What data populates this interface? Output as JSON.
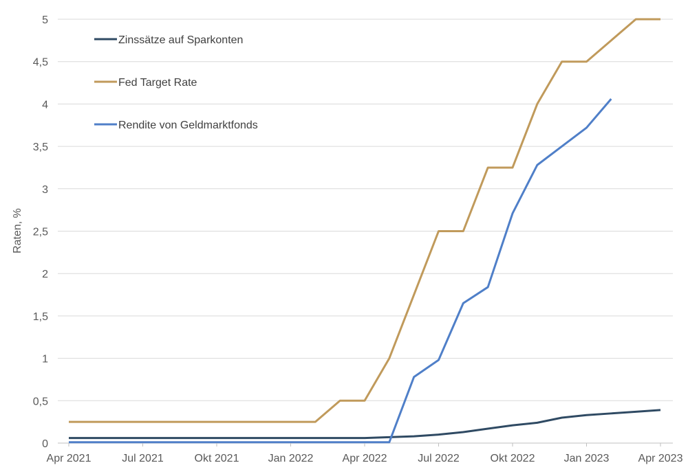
{
  "chart_data": {
    "type": "line",
    "ylabel": "Raten, %",
    "xlabel": "",
    "ylim": [
      0,
      5
    ],
    "y_ticks": [
      0,
      0.5,
      1,
      1.5,
      2,
      2.5,
      3,
      3.5,
      4,
      4.5,
      5
    ],
    "y_tick_labels": [
      "0",
      "0,5",
      "1",
      "1,5",
      "2",
      "2,5",
      "3",
      "3,5",
      "4",
      "4,5",
      "5"
    ],
    "x_range": [
      "2021-04",
      "2023-04"
    ],
    "x_ticks": [
      "2021-04",
      "2021-07",
      "2021-10",
      "2022-01",
      "2022-04",
      "2022-07",
      "2022-10",
      "2023-01",
      "2023-04"
    ],
    "x_tick_labels": [
      "Apr 2021",
      "Jul 2021",
      "Okt 2021",
      "Jan 2022",
      "Apr 2022",
      "Jul 2022",
      "Okt 2022",
      "Jan 2023",
      "Apr 2023"
    ],
    "grid": "horizontal",
    "legend_position": "top-left",
    "series": [
      {
        "name": "Zinssätze auf Sparkonten",
        "color": "#2f4a63",
        "points": [
          [
            "2021-04",
            0.06
          ],
          [
            "2021-05",
            0.06
          ],
          [
            "2021-06",
            0.06
          ],
          [
            "2021-07",
            0.06
          ],
          [
            "2021-08",
            0.06
          ],
          [
            "2021-09",
            0.06
          ],
          [
            "2021-10",
            0.06
          ],
          [
            "2021-11",
            0.06
          ],
          [
            "2021-12",
            0.06
          ],
          [
            "2022-01",
            0.06
          ],
          [
            "2022-02",
            0.06
          ],
          [
            "2022-03",
            0.06
          ],
          [
            "2022-04",
            0.06
          ],
          [
            "2022-05",
            0.07
          ],
          [
            "2022-06",
            0.08
          ],
          [
            "2022-07",
            0.1
          ],
          [
            "2022-08",
            0.13
          ],
          [
            "2022-09",
            0.17
          ],
          [
            "2022-10",
            0.21
          ],
          [
            "2022-11",
            0.24
          ],
          [
            "2022-12",
            0.3
          ],
          [
            "2023-01",
            0.33
          ],
          [
            "2023-02",
            0.35
          ],
          [
            "2023-03",
            0.37
          ],
          [
            "2023-04",
            0.39
          ]
        ]
      },
      {
        "name": "Fed Target Rate",
        "color": "#c09a5b",
        "points": [
          [
            "2021-04",
            0.25
          ],
          [
            "2021-05",
            0.25
          ],
          [
            "2021-06",
            0.25
          ],
          [
            "2021-07",
            0.25
          ],
          [
            "2021-08",
            0.25
          ],
          [
            "2021-09",
            0.25
          ],
          [
            "2021-10",
            0.25
          ],
          [
            "2021-11",
            0.25
          ],
          [
            "2021-12",
            0.25
          ],
          [
            "2022-01",
            0.25
          ],
          [
            "2022-02",
            0.25
          ],
          [
            "2022-03",
            0.5
          ],
          [
            "2022-04",
            0.5
          ],
          [
            "2022-05",
            1.0
          ],
          [
            "2022-06",
            1.75
          ],
          [
            "2022-07",
            2.5
          ],
          [
            "2022-08",
            2.5
          ],
          [
            "2022-09",
            3.25
          ],
          [
            "2022-10",
            3.25
          ],
          [
            "2022-11",
            4.0
          ],
          [
            "2022-12",
            4.5
          ],
          [
            "2023-01",
            4.5
          ],
          [
            "2023-02",
            4.75
          ],
          [
            "2023-03",
            5.0
          ],
          [
            "2023-04",
            5.0
          ]
        ]
      },
      {
        "name": "Rendite von Geldmarktfonds",
        "color": "#4f7fc8",
        "points": [
          [
            "2021-04",
            0.01
          ],
          [
            "2021-05",
            0.01
          ],
          [
            "2021-06",
            0.01
          ],
          [
            "2021-07",
            0.01
          ],
          [
            "2021-08",
            0.01
          ],
          [
            "2021-09",
            0.01
          ],
          [
            "2021-10",
            0.01
          ],
          [
            "2021-11",
            0.01
          ],
          [
            "2021-12",
            0.01
          ],
          [
            "2022-01",
            0.01
          ],
          [
            "2022-02",
            0.01
          ],
          [
            "2022-03",
            0.01
          ],
          [
            "2022-04",
            0.01
          ],
          [
            "2022-05",
            0.01
          ],
          [
            "2022-06",
            0.78
          ],
          [
            "2022-07",
            0.98
          ],
          [
            "2022-08",
            1.65
          ],
          [
            "2022-09",
            1.84
          ],
          [
            "2022-10",
            2.71
          ],
          [
            "2022-11",
            3.28
          ],
          [
            "2022-12",
            3.5
          ],
          [
            "2023-01",
            3.72
          ],
          [
            "2023-02",
            4.06
          ]
        ]
      }
    ]
  }
}
